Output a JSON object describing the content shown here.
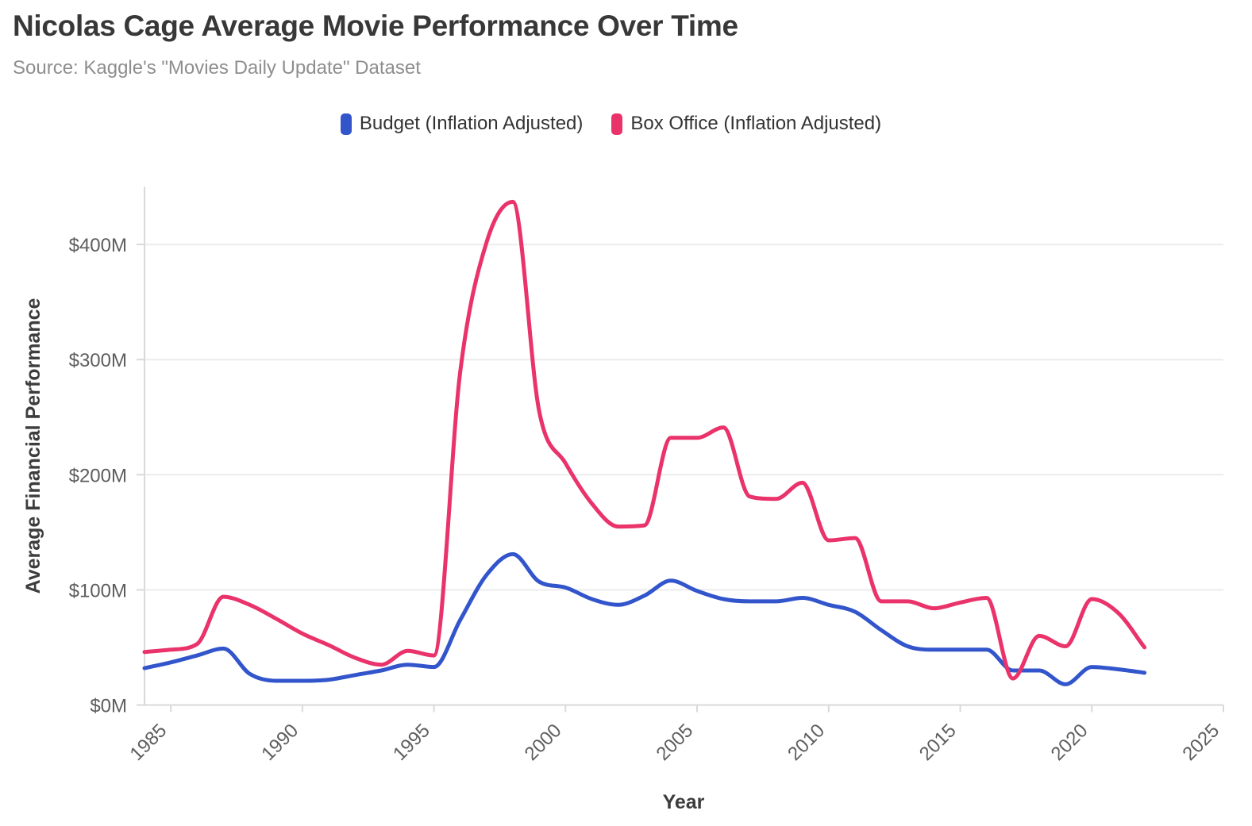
{
  "header": {
    "title": "Nicolas Cage Average Movie Performance Over Time",
    "subtitle": "Source: Kaggle's \"Movies Daily Update\" Dataset"
  },
  "legend": [
    {
      "label": "Budget (Inflation Adjusted)",
      "color": "#3355cc"
    },
    {
      "label": "Box Office (Inflation Adjusted)",
      "color": "#e9336a"
    }
  ],
  "chart_data": {
    "type": "line",
    "title": "Nicolas Cage Average Movie Performance Over Time",
    "xlabel": "Year",
    "ylabel": "Average Financial Performance",
    "xlim": [
      1984,
      2025
    ],
    "ylim": [
      0,
      450
    ],
    "grid": "horizontal",
    "legend_position": "top",
    "x": [
      1984,
      1985,
      1986,
      1987,
      1988,
      1989,
      1990,
      1991,
      1992,
      1993,
      1994,
      1995,
      1996,
      1997,
      1998,
      1999,
      2000,
      2001,
      2002,
      2003,
      2004,
      2005,
      2006,
      2007,
      2008,
      2009,
      2010,
      2011,
      2012,
      2013,
      2014,
      2015,
      2016,
      2017,
      2018,
      2019,
      2020,
      2021,
      2022
    ],
    "series": [
      {
        "name": "Budget (Inflation Adjusted)",
        "color": "#3355cc",
        "values": [
          32,
          37,
          43,
          49,
          27,
          21,
          21,
          22,
          26,
          30,
          35,
          33,
          74,
          113,
          131,
          107,
          102,
          92,
          87,
          95,
          108,
          99,
          92,
          90,
          90,
          93,
          87,
          81,
          65,
          51,
          48,
          48,
          48,
          30,
          30,
          18,
          33,
          31,
          28
        ]
      },
      {
        "name": "Box Office (Inflation Adjusted)",
        "color": "#e9336a",
        "values": [
          46,
          48,
          53,
          94,
          87,
          75,
          62,
          52,
          41,
          35,
          47,
          43,
          290,
          402,
          437,
          255,
          210,
          175,
          155,
          156,
          232,
          232,
          241,
          181,
          179,
          193,
          143,
          145,
          90,
          90,
          84,
          89,
          93,
          23,
          60,
          51,
          92,
          80,
          50
        ]
      }
    ],
    "y_ticks": [
      {
        "value": 0,
        "label": "$0M"
      },
      {
        "value": 100,
        "label": "$100M"
      },
      {
        "value": 200,
        "label": "$200M"
      },
      {
        "value": 300,
        "label": "$300M"
      },
      {
        "value": 400,
        "label": "$400M"
      }
    ],
    "x_ticks": [
      {
        "value": 1985,
        "label": "1985"
      },
      {
        "value": 1990,
        "label": "1990"
      },
      {
        "value": 1995,
        "label": "1995"
      },
      {
        "value": 2000,
        "label": "2000"
      },
      {
        "value": 2005,
        "label": "2005"
      },
      {
        "value": 2010,
        "label": "2010"
      },
      {
        "value": 2015,
        "label": "2015"
      },
      {
        "value": 2020,
        "label": "2020"
      },
      {
        "value": 2025,
        "label": "2025"
      }
    ]
  },
  "colors": {
    "background": "#ffffff",
    "title": "#383838",
    "subtitle": "#8e8e8e",
    "legend_text": "#333333",
    "gridline": "#ececec",
    "axis_line": "#d9d9d9",
    "tick_label": "#5e5e5e",
    "axis_title": "#3d3d3d"
  }
}
